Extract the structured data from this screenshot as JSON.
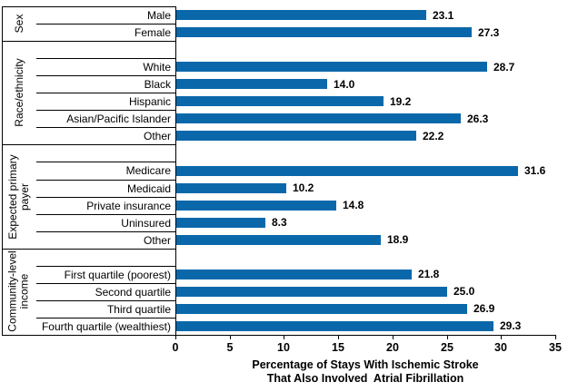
{
  "chart_data": {
    "type": "bar",
    "orientation": "horizontal",
    "title": "",
    "xlabel_line1": "Percentage of Stays With Ischemic Stroke",
    "xlabel_line2": "That Also Involved  Atrial Fibrillation",
    "xlim": [
      0,
      35
    ],
    "xticks": [
      0,
      5,
      10,
      15,
      20,
      25,
      30,
      35
    ],
    "value_label_format": "one-decimal",
    "bar_color": "#0A68AA",
    "axis_color": "#000000",
    "grid": "off",
    "legend": "none",
    "groups": [
      {
        "label": "Sex",
        "items": [
          {
            "label": "Male",
            "value": 23.1
          },
          {
            "label": "Female",
            "value": 27.3
          }
        ]
      },
      {
        "label": "Race/ethnicity",
        "items": [
          {
            "label": "White",
            "value": 28.7
          },
          {
            "label": "Black",
            "value": 14.0
          },
          {
            "label": "Hispanic",
            "value": 19.2
          },
          {
            "label": "Asian/Pacific Islander",
            "value": 26.3
          },
          {
            "label": "Other",
            "value": 22.2
          }
        ]
      },
      {
        "label": "Expected primary payer",
        "items": [
          {
            "label": "Medicare",
            "value": 31.6
          },
          {
            "label": "Medicaid",
            "value": 10.2
          },
          {
            "label": "Private insurance",
            "value": 14.8
          },
          {
            "label": "Uninsured",
            "value": 8.3
          },
          {
            "label": "Other",
            "value": 18.9
          }
        ]
      },
      {
        "label": "Community-level income",
        "items": [
          {
            "label": "First quartile (poorest)",
            "value": 21.8
          },
          {
            "label": "Second quartile",
            "value": 25.0
          },
          {
            "label": "Third quartile",
            "value": 26.9
          },
          {
            "label": "Fourth quartile (wealthiest)",
            "value": 29.3
          }
        ]
      }
    ]
  }
}
